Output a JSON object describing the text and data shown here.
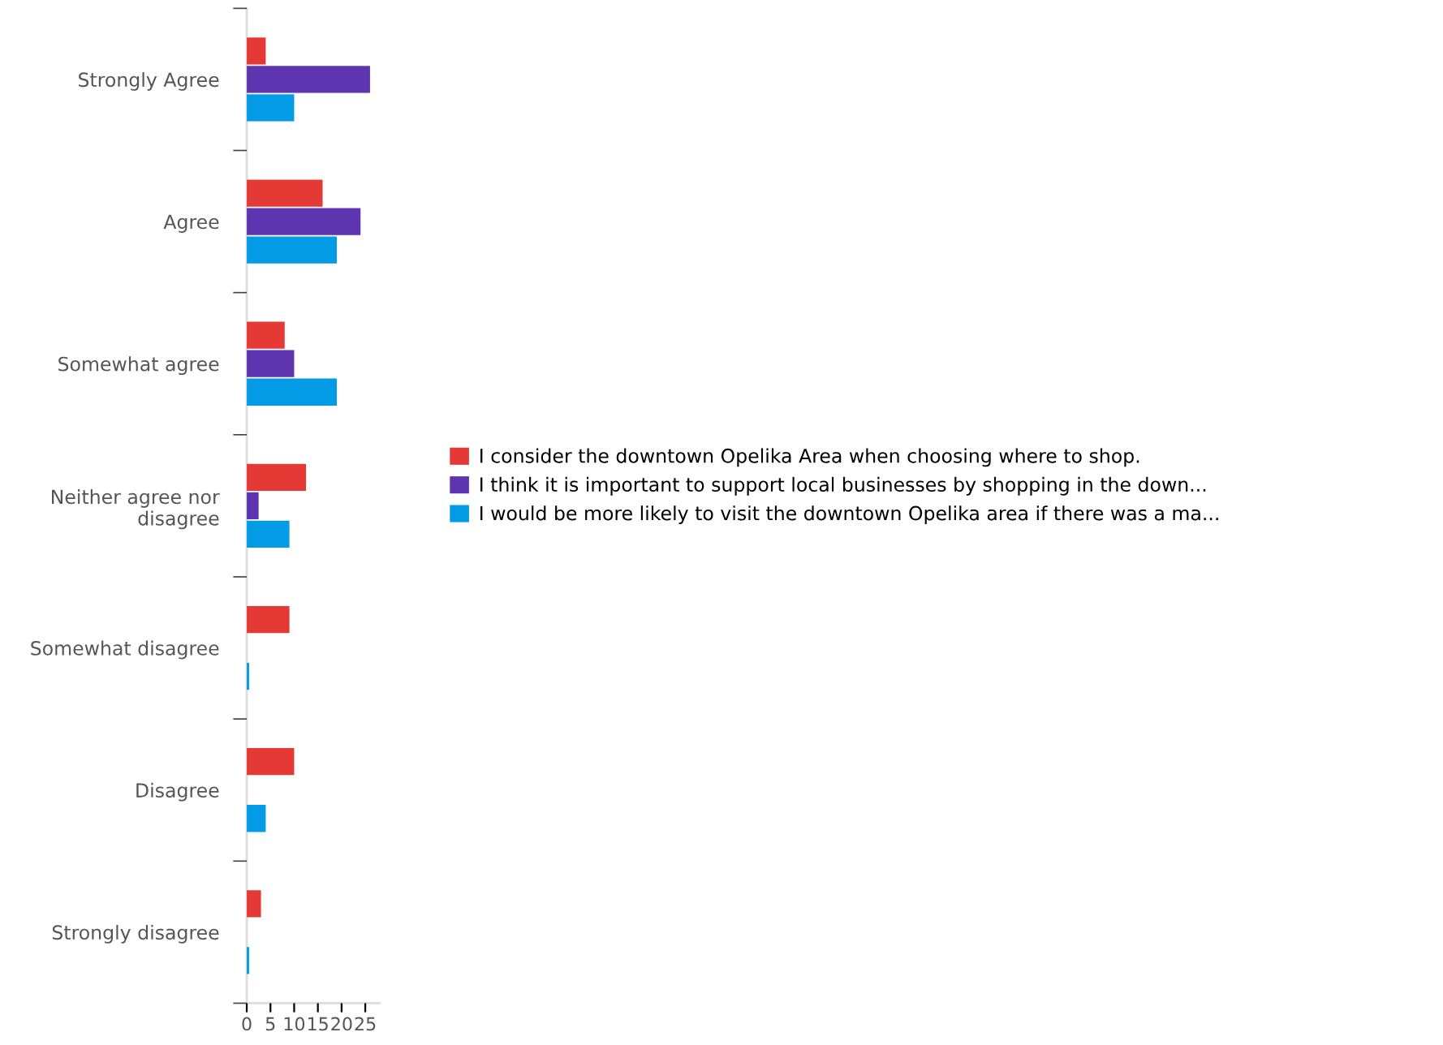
{
  "chart_data": {
    "type": "bar",
    "orientation": "horizontal",
    "categories": [
      "Strongly Agree",
      "Agree",
      "Somewhat agree",
      "Neither agree nor\ndisagree",
      "Somewhat disagree",
      "Disagree",
      "Strongly disagree"
    ],
    "series": [
      {
        "name": "I consider the downtown Opelika Area when choosing where to shop.",
        "color": "#e53935",
        "values": [
          4,
          16,
          8,
          12.5,
          9,
          10,
          3
        ]
      },
      {
        "name": "I think it is important to support local businesses by shopping in the down...",
        "color": "#5e35b1",
        "values": [
          26,
          24,
          10,
          2.5,
          0,
          0,
          0
        ]
      },
      {
        "name": "I would be more likely to visit the downtown Opelika area if there was a ma...",
        "color": "#039be5",
        "values": [
          10,
          19,
          19,
          9,
          0.5,
          4,
          0.5
        ]
      }
    ],
    "xlim": [
      0,
      28
    ],
    "xticks": [
      0,
      5,
      10,
      15,
      20,
      25
    ],
    "grid": false,
    "legend": "right"
  }
}
